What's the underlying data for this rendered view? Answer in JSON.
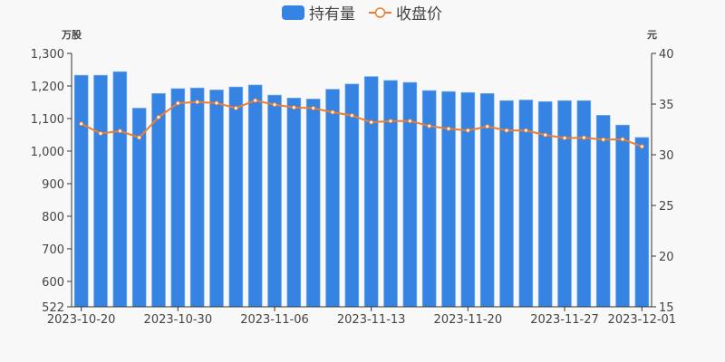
{
  "chart_data": {
    "type": "bar+line",
    "legend": {
      "position": "top-center",
      "items": [
        "持有量",
        "收盘价"
      ]
    },
    "left_axis": {
      "unit": "万股",
      "min": 522,
      "max": 1300,
      "ticks": [
        1300,
        1200,
        1100,
        1000,
        900,
        800,
        700,
        600,
        522
      ],
      "tick_labels": [
        "1,300",
        "1,200",
        "1,100",
        "1,000",
        "900",
        "800",
        "700",
        "600",
        "522"
      ]
    },
    "right_axis": {
      "unit": "元",
      "min": 15,
      "max": 40,
      "ticks": [
        40,
        35,
        30,
        25,
        20,
        15
      ],
      "tick_labels": [
        "40",
        "35",
        "30",
        "25",
        "20",
        "15"
      ]
    },
    "x_labels": [
      {
        "index": 0,
        "label": "2023-10-20"
      },
      {
        "index": 5,
        "label": "2023-10-30"
      },
      {
        "index": 10,
        "label": "2023-11-06"
      },
      {
        "index": 15,
        "label": "2023-11-13"
      },
      {
        "index": 20,
        "label": "2023-11-20"
      },
      {
        "index": 25,
        "label": "2023-11-27"
      },
      {
        "index": 29,
        "label": "2023-12-01"
      }
    ],
    "series": [
      {
        "name": "持有量",
        "type": "bar",
        "axis": "left",
        "color": "#3584e4",
        "values": [
          1233,
          1233,
          1244,
          1132,
          1177,
          1192,
          1194,
          1188,
          1197,
          1203,
          1172,
          1163,
          1160,
          1190,
          1206,
          1229,
          1217,
          1211,
          1186,
          1183,
          1180,
          1177,
          1155,
          1157,
          1152,
          1155,
          1155,
          1110,
          1080,
          1042
        ]
      },
      {
        "name": "收盘价",
        "type": "line",
        "axis": "right",
        "color": "#ed7d31",
        "values": [
          33.06,
          32.1,
          32.34,
          31.7,
          33.7,
          35.09,
          35.2,
          35.1,
          34.6,
          35.36,
          34.94,
          34.67,
          34.6,
          34.2,
          33.87,
          33.2,
          33.33,
          33.33,
          32.84,
          32.57,
          32.4,
          32.79,
          32.4,
          32.4,
          31.95,
          31.65,
          31.68,
          31.5,
          31.53,
          30.81
        ]
      }
    ]
  }
}
